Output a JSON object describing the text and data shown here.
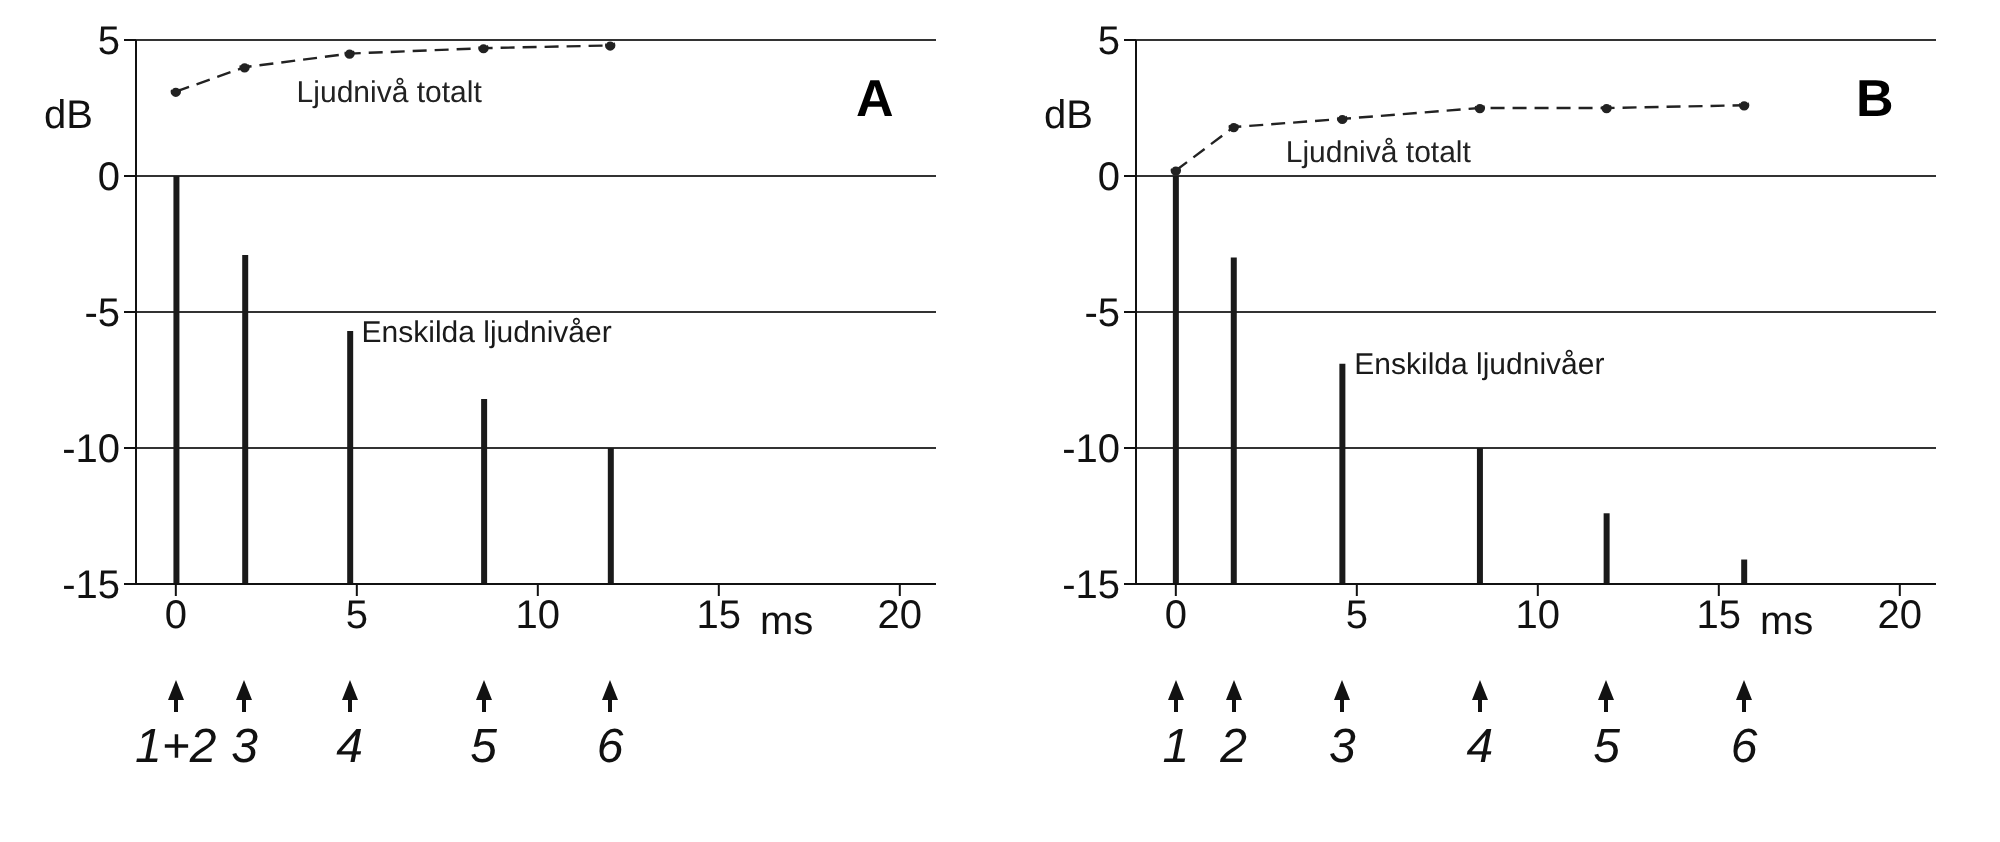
{
  "chart_data": [
    {
      "type": "bar",
      "title": "A",
      "xlabel": "ms",
      "ylabel": "dB",
      "xlim": [
        -1.1,
        21
      ],
      "ylim": [
        -15,
        5
      ],
      "xticks": [
        0,
        5,
        10,
        15,
        20
      ],
      "yticks": [
        -15,
        -10,
        -5,
        0,
        5
      ],
      "grid": "y",
      "series": [
        {
          "name": "Ljudnivå totalt",
          "type": "line",
          "color": "#222222",
          "line_style": "dashed",
          "marker": "circle",
          "x": [
            0,
            1.9,
            4.8,
            8.5,
            12
          ],
          "values": [
            3.1,
            4.0,
            4.5,
            4.7,
            4.8
          ]
        },
        {
          "name": "Enskilda ljudnivåer",
          "color": "#1a1a1a",
          "x": [
            0,
            1.9,
            4.8,
            8.5,
            12
          ],
          "base": [
            -15,
            -15,
            -15,
            -15,
            -15
          ],
          "values": [
            15,
            12.1,
            9.3,
            6.8,
            5.0
          ]
        }
      ],
      "annotations": [
        "1+2",
        "3",
        "4",
        "5",
        "6"
      ]
    },
    {
      "type": "bar",
      "title": "B",
      "xlabel": "ms",
      "ylabel": "dB",
      "xlim": [
        -1.1,
        21
      ],
      "ylim": [
        -15,
        5
      ],
      "xticks": [
        0,
        5,
        10,
        15,
        20
      ],
      "yticks": [
        -15,
        -10,
        -5,
        0,
        5
      ],
      "grid": "y",
      "series": [
        {
          "name": "Ljudnivå totalt",
          "type": "line",
          "color": "#222222",
          "line_style": "dashed",
          "marker": "circle",
          "x": [
            0,
            1.6,
            4.6,
            8.4,
            11.9,
            15.7
          ],
          "values": [
            0.2,
            1.8,
            2.1,
            2.5,
            2.5,
            2.6
          ]
        },
        {
          "name": "Enskilda ljudnivåer",
          "color": "#1a1a1a",
          "x": [
            0,
            1.6,
            4.6,
            8.4,
            11.9,
            15.7
          ],
          "base": [
            -15,
            -15,
            -15,
            -15,
            -15,
            -15
          ],
          "values": [
            15,
            12.0,
            8.1,
            5.0,
            2.6,
            0.9
          ]
        }
      ],
      "annotations": [
        "1",
        "2",
        "3",
        "4",
        "5",
        "6"
      ]
    }
  ]
}
